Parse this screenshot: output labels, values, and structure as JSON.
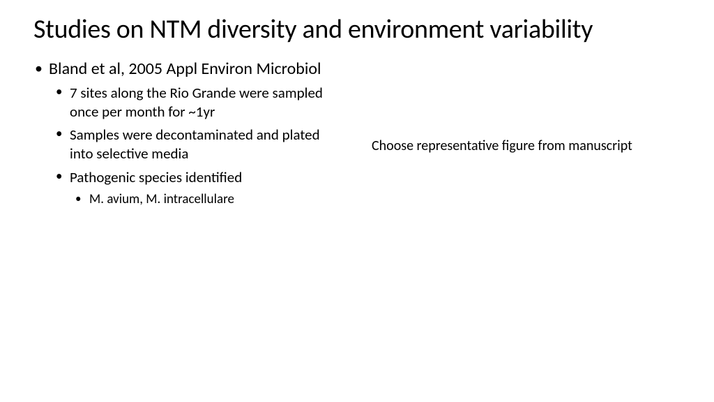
{
  "slide": {
    "title": "Studies on NTM diversity and environment variability",
    "background_color": "#ffffff",
    "text_color": "#000000",
    "title_fontsize": 38,
    "body_fontsize_l1": 24,
    "body_fontsize_l2": 21,
    "body_fontsize_l3": 19,
    "note_fontsize": 20,
    "font_family": "Calibri",
    "bullets": {
      "l1": {
        "text": "Bland et al, 2005 Appl Environ Microbiol"
      },
      "l2_items": [
        "7 sites along the Rio Grande were sampled once per month for ~1yr",
        "Samples were decontaminated and plated into selective media",
        "Pathogenic species identified"
      ],
      "l3_items": [
        "M. avium, M. intracellulare"
      ]
    },
    "right_note": "Choose representative figure from manuscript"
  }
}
